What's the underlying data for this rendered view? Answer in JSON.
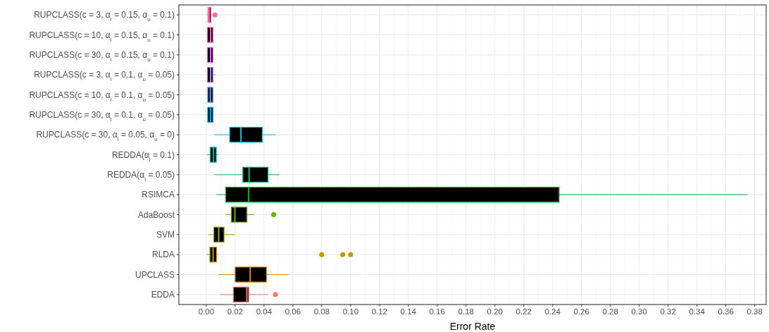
{
  "chart_data": {
    "type": "box",
    "orientation": "horizontal",
    "xlabel": "Error Rate",
    "grid": true,
    "categories": [
      "RUPCLASS(c = 3, α$_{l}$ = 0.15, α$_{u}$ = 0.1)",
      "RUPCLASS(c = 10, α$_{l}$ = 0.15, α$_{u}$ = 0.1)",
      "RUPCLASS(c = 30, α$_{l}$ = 0.15, α$_{u}$ = 0.1)",
      "RUPCLASS(c = 3, α$_{l}$ = 0.1, α$_{u}$ = 0.05)",
      "RUPCLASS(c = 10, α$_{l}$ = 0.1, α$_{u}$ = 0.05)",
      "RUPCLASS(c = 30, α$_{l}$ = 0.1, α$_{u}$ = 0.05)",
      "RUPCLASS(c = 30, α$_{l}$ = 0.05, α$_{u}$ = 0)",
      "REDDA(α$_{l}$ = 0.1)",
      "REDDA(α$_{l}$ = 0.05)",
      "RSIMCA",
      "AdaBoost",
      "SVM",
      "RLDA",
      "UPCLASS",
      "EDDA"
    ],
    "colors": [
      "#ff67a4",
      "#fd61d1",
      "#e76bf3",
      "#b983ff",
      "#619cff",
      "#00b0f6",
      "#00bcd8",
      "#00c0af",
      "#00bf7d",
      "#00ba38",
      "#6bb100",
      "#a3a500",
      "#c99800",
      "#e58700",
      "#f8766d"
    ],
    "boxes": [
      {
        "low": 0.0003,
        "q1": 0.0012,
        "median": 0.002,
        "q3": 0.0032,
        "high": 0.004,
        "outliers": [
          0.006
        ]
      },
      {
        "low": 0.0003,
        "q1": 0.0008,
        "median": 0.003,
        "q3": 0.0046,
        "high": 0.005
      },
      {
        "low": 0.0003,
        "q1": 0.0008,
        "median": 0.003,
        "q3": 0.0046,
        "high": 0.005
      },
      {
        "low": 0.0003,
        "q1": 0.0008,
        "median": 0.003,
        "q3": 0.0046,
        "high": 0.0065
      },
      {
        "low": 0.0003,
        "q1": 0.001,
        "median": 0.0028,
        "q3": 0.0046,
        "high": 0.005
      },
      {
        "low": 0.0003,
        "q1": 0.001,
        "median": 0.0029,
        "q3": 0.0046,
        "high": 0.005
      },
      {
        "low": 0.0056,
        "q1": 0.0162,
        "median": 0.024,
        "q3": 0.0388,
        "high": 0.0479
      },
      {
        "low": 0.0004,
        "q1": 0.0027,
        "median": 0.005,
        "q3": 0.0069,
        "high": 0.008
      },
      {
        "low": 0.0056,
        "q1": 0.0253,
        "median": 0.0297,
        "q3": 0.0428,
        "high": 0.0508
      },
      {
        "low": 0.0069,
        "q1": 0.0134,
        "median": 0.0294,
        "q3": 0.2445,
        "high": 0.375
      },
      {
        "low": 0.0134,
        "q1": 0.0173,
        "median": 0.0198,
        "q3": 0.0282,
        "high": 0.0333,
        "outliers": [
          0.0467
        ]
      },
      {
        "low": 0.0015,
        "q1": 0.0052,
        "median": 0.0086,
        "q3": 0.0123,
        "high": 0.0198
      },
      {
        "low": 0.0002,
        "q1": 0.0025,
        "median": 0.0047,
        "q3": 0.0071,
        "high": 0.0081,
        "outliers": [
          0.08,
          0.0946,
          0.1
        ]
      },
      {
        "low": 0.0082,
        "q1": 0.02,
        "median": 0.0304,
        "q3": 0.0417,
        "high": 0.0573
      },
      {
        "low": 0.0096,
        "q1": 0.0188,
        "median": 0.0281,
        "q3": 0.0294,
        "high": 0.0427,
        "outliers": [
          0.0479
        ]
      }
    ],
    "xlim": [
      -0.019,
      0.388
    ],
    "xticks": [
      {
        "value": 0,
        "label": "0.00"
      },
      0.02,
      0.04,
      0.06,
      0.08,
      {
        "value": 0.1,
        "label": "0.10"
      },
      0.12,
      0.14,
      0.16,
      0.18,
      {
        "value": 0.2,
        "label": "0.20"
      },
      0.22,
      0.24,
      0.26,
      0.28,
      {
        "value": 0.3,
        "label": "0.30"
      },
      0.32,
      0.34,
      0.36,
      0.38
    ]
  }
}
